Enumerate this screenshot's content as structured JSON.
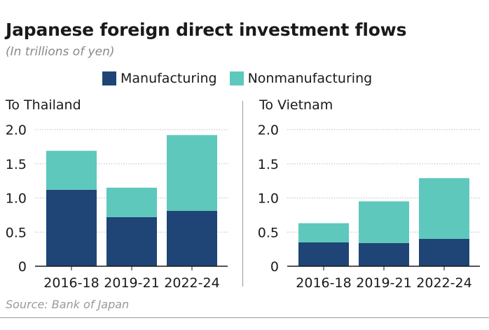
{
  "title": "Japanese foreign direct investment flows",
  "subtitle": "(In trillions of yen)",
  "source": "Source: Bank of Japan",
  "legend": [
    {
      "label": "Manufacturing",
      "color": "#1e4575"
    },
    {
      "label": "Nonmanufacturing",
      "color": "#5ec8bd"
    }
  ],
  "chart_data": [
    {
      "type": "bar",
      "stacked": true,
      "title": "To Thailand",
      "categories": [
        "2016-18",
        "2019-21",
        "2022-24"
      ],
      "series": [
        {
          "name": "Manufacturing",
          "values": [
            1.12,
            0.72,
            0.81
          ]
        },
        {
          "name": "Nonmanufacturing",
          "values": [
            0.57,
            0.43,
            1.11
          ]
        }
      ],
      "ylim": [
        0,
        2.0
      ],
      "yticks": [
        "0",
        "0.5",
        "1.0",
        "1.5",
        "2.0"
      ],
      "grid": true
    },
    {
      "type": "bar",
      "stacked": true,
      "title": "To Vietnam",
      "categories": [
        "2016-18",
        "2019-21",
        "2022-24"
      ],
      "series": [
        {
          "name": "Manufacturing",
          "values": [
            0.35,
            0.34,
            0.4
          ]
        },
        {
          "name": "Nonmanufacturing",
          "values": [
            0.28,
            0.61,
            0.89
          ]
        }
      ],
      "ylim": [
        0,
        2.0
      ],
      "yticks": [
        "0",
        "0.5",
        "1.0",
        "1.5",
        "2.0"
      ],
      "grid": true
    }
  ]
}
